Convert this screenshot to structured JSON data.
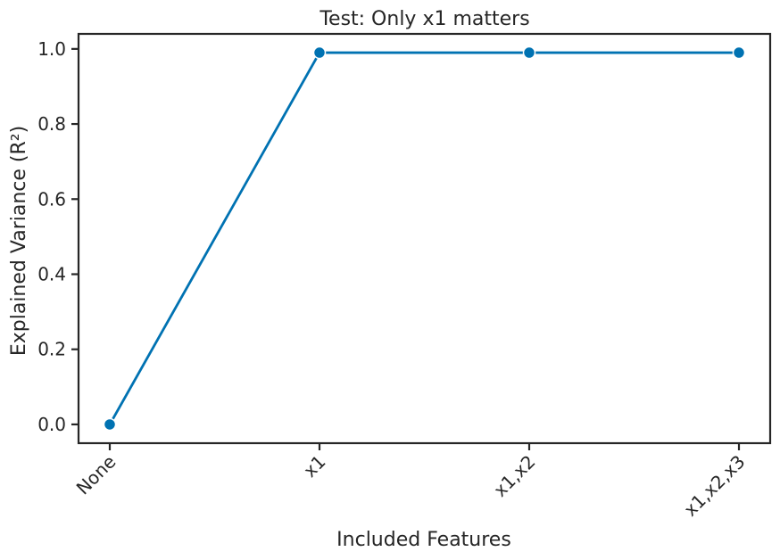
{
  "chart_data": {
    "type": "line",
    "title": "Test: Only x1 matters",
    "xlabel": "Included Features",
    "ylabel": "Explained Variance (R²)",
    "categories": [
      "None",
      "x1",
      "x1,x2",
      "x1,x2,x3"
    ],
    "series": [
      {
        "values": [
          0.0,
          0.99,
          0.99,
          0.99
        ],
        "color": "#0072b2"
      }
    ],
    "ylim": [
      -0.05,
      1.04
    ],
    "yticks": [
      0.0,
      0.2,
      0.4,
      0.6,
      0.8,
      1.0
    ],
    "ytick_labels": [
      "0.0",
      "0.2",
      "0.4",
      "0.6",
      "0.8",
      "1.0"
    ],
    "grid": false,
    "legend": false
  }
}
